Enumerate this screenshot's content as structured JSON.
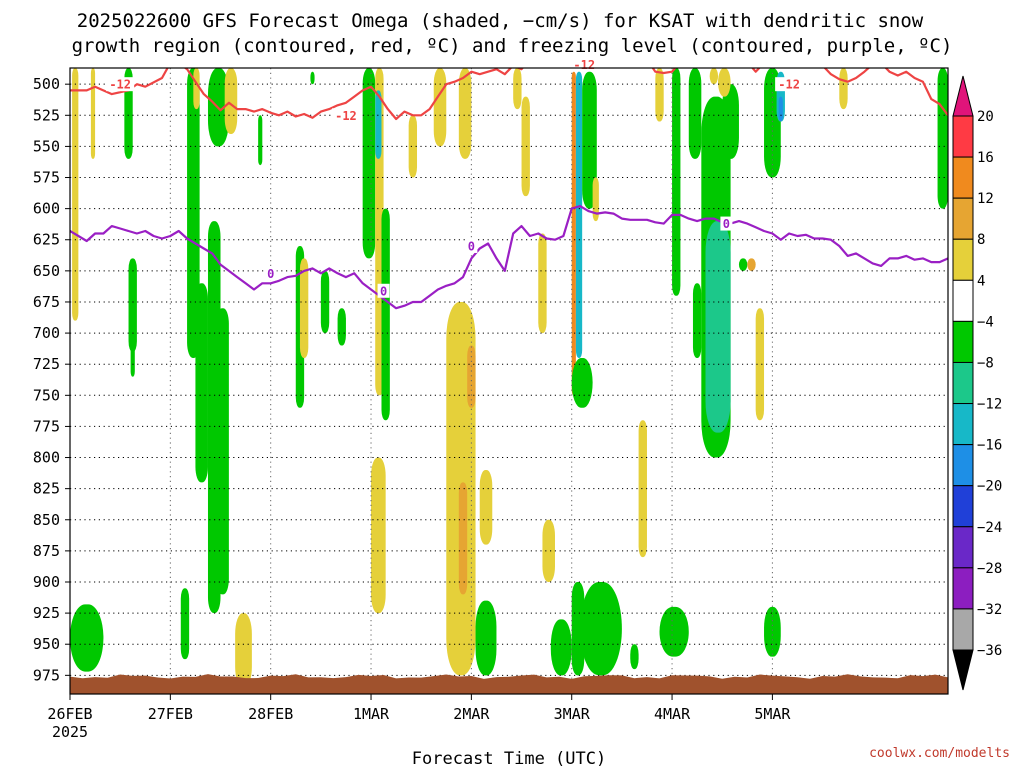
{
  "title": {
    "line1": "2025022600 GFS Forecast Omega (shaded, −cm/s) for KSAT with dendritic snow",
    "line2": "growth region (contoured, red, ºC) and freezing level (contoured, purple, ºC)"
  },
  "credit": "coolwx.com/modelts",
  "chart_data": {
    "type": "heatmap",
    "xlabel": "Forecast Time (UTC)",
    "ylabel": "",
    "xlim_hours": [
      0,
      210
    ],
    "ylim_hpa": [
      487,
      990
    ],
    "x_ticks": [
      {
        "hours": 0,
        "label": "26FEB",
        "sublabel": "2025"
      },
      {
        "hours": 24,
        "label": "27FEB"
      },
      {
        "hours": 48,
        "label": "28FEB"
      },
      {
        "hours": 72,
        "label": "1MAR"
      },
      {
        "hours": 96,
        "label": "2MAR"
      },
      {
        "hours": 120,
        "label": "3MAR"
      },
      {
        "hours": 144,
        "label": "4MAR"
      },
      {
        "hours": 168,
        "label": "5MAR"
      }
    ],
    "y_ticks": [
      500,
      525,
      550,
      575,
      600,
      625,
      650,
      675,
      700,
      725,
      750,
      775,
      800,
      825,
      850,
      875,
      900,
      925,
      950,
      975
    ],
    "grid": true,
    "colorbar": {
      "levels": [
        "20",
        "16",
        "12",
        "8",
        "4",
        "−4",
        "−8",
        "−12",
        "−16",
        "−20",
        "−24",
        "−28",
        "−32",
        "−36"
      ],
      "colors": [
        "#ff3a44",
        "#f08a1e",
        "#e6a532",
        "#e5d03a",
        "#ffffff",
        "#00c800",
        "#1cc88a",
        "#17b8c8",
        "#1e8fe6",
        "#2040d8",
        "#6a28c8",
        "#8c1ec0",
        "#a8a8a8"
      ],
      "top_arrow_color": "#e0147a",
      "bottom_arrow_color": "#000000"
    },
    "omega_color_classes": {
      "pos_4_8": "#e5d03a",
      "pos_8_12": "#e6a532",
      "pos_12_16": "#f08a1e",
      "neg_4_8": "#00c800",
      "neg_8_12": "#1cc88a",
      "neg_12_16": "#17b8c8",
      "neg_16_20": "#1e8fe6"
    },
    "omega_areas": [
      {
        "class": "neg_4_8",
        "t": [
          0,
          8
        ],
        "p": [
          918,
          972
        ]
      },
      {
        "class": "neg_4_8",
        "t": [
          13,
          15
        ],
        "p": [
          487,
          560
        ]
      },
      {
        "class": "neg_4_8",
        "t": [
          14,
          16
        ],
        "p": [
          640,
          715
        ]
      },
      {
        "class": "neg_4_8",
        "t": [
          14.5,
          15.5
        ],
        "p": [
          710,
          735
        ]
      },
      {
        "class": "pos_4_8",
        "t": [
          0.5,
          2
        ],
        "p": [
          487,
          690
        ]
      },
      {
        "class": "pos_4_8",
        "t": [
          5,
          6
        ],
        "p": [
          487,
          560
        ]
      },
      {
        "class": "neg_4_8",
        "t": [
          28,
          31
        ],
        "p": [
          487,
          720
        ]
      },
      {
        "class": "neg_4_8",
        "t": [
          33,
          38
        ],
        "p": [
          487,
          550
        ]
      },
      {
        "class": "pos_4_8",
        "t": [
          29.5,
          31
        ],
        "p": [
          487,
          520
        ]
      },
      {
        "class": "pos_4_8",
        "t": [
          37,
          40
        ],
        "p": [
          487,
          540
        ]
      },
      {
        "class": "neg_4_8",
        "t": [
          33,
          36
        ],
        "p": [
          610,
          925
        ]
      },
      {
        "class": "neg_4_8",
        "t": [
          35,
          38
        ],
        "p": [
          680,
          910
        ]
      },
      {
        "class": "neg_4_8",
        "t": [
          30,
          33
        ],
        "p": [
          660,
          820
        ]
      },
      {
        "class": "neg_4_8",
        "t": [
          26.5,
          28.5
        ],
        "p": [
          905,
          962
        ]
      },
      {
        "class": "pos_4_8",
        "t": [
          39.5,
          43.5
        ],
        "p": [
          925,
          985
        ]
      },
      {
        "class": "neg_4_8",
        "t": [
          45,
          46
        ],
        "p": [
          525,
          565
        ]
      },
      {
        "class": "neg_4_8",
        "t": [
          54,
          56
        ],
        "p": [
          630,
          760
        ]
      },
      {
        "class": "pos_4_8",
        "t": [
          55,
          57
        ],
        "p": [
          640,
          720
        ]
      },
      {
        "class": "neg_4_8",
        "t": [
          57.5,
          58.5
        ],
        "p": [
          490,
          500
        ]
      },
      {
        "class": "neg_4_8",
        "t": [
          60,
          62
        ],
        "p": [
          650,
          700
        ]
      },
      {
        "class": "neg_4_8",
        "t": [
          64,
          66
        ],
        "p": [
          680,
          710
        ]
      },
      {
        "class": "neg_4_8",
        "t": [
          70,
          73
        ],
        "p": [
          487,
          640
        ]
      },
      {
        "class": "pos_4_8",
        "t": [
          73,
          75
        ],
        "p": [
          487,
          750
        ]
      },
      {
        "class": "neg_12_16",
        "t": [
          73,
          74.5
        ],
        "p": [
          505,
          560
        ]
      },
      {
        "class": "neg_4_8",
        "t": [
          74.5,
          76.5
        ],
        "p": [
          600,
          770
        ]
      },
      {
        "class": "pos_4_8",
        "t": [
          72,
          75.5
        ],
        "p": [
          800,
          925
        ]
      },
      {
        "class": "pos_4_8",
        "t": [
          81,
          83
        ],
        "p": [
          525,
          575
        ]
      },
      {
        "class": "pos_4_8",
        "t": [
          87,
          90
        ],
        "p": [
          487,
          550
        ]
      },
      {
        "class": "pos_4_8",
        "t": [
          93,
          96
        ],
        "p": [
          487,
          560
        ]
      },
      {
        "class": "pos_4_8",
        "t": [
          90,
          97
        ],
        "p": [
          675,
          975
        ]
      },
      {
        "class": "pos_8_12",
        "t": [
          93,
          95
        ],
        "p": [
          820,
          910
        ]
      },
      {
        "class": "pos_8_12",
        "t": [
          95,
          97
        ],
        "p": [
          710,
          760
        ]
      },
      {
        "class": "neg_4_8",
        "t": [
          97,
          102
        ],
        "p": [
          915,
          975
        ]
      },
      {
        "class": "pos_4_8",
        "t": [
          98,
          101
        ],
        "p": [
          810,
          870
        ]
      },
      {
        "class": "pos_4_8",
        "t": [
          106,
          108
        ],
        "p": [
          487,
          520
        ]
      },
      {
        "class": "pos_4_8",
        "t": [
          108,
          110
        ],
        "p": [
          510,
          590
        ]
      },
      {
        "class": "pos_4_8",
        "t": [
          112,
          114
        ],
        "p": [
          620,
          700
        ]
      },
      {
        "class": "pos_4_8",
        "t": [
          113,
          116
        ],
        "p": [
          850,
          900
        ]
      },
      {
        "class": "pos_12_16",
        "t": [
          120,
          121
        ],
        "p": [
          490,
          750
        ]
      },
      {
        "class": "neg_4_8",
        "t": [
          115,
          120
        ],
        "p": [
          930,
          975
        ]
      },
      {
        "class": "neg_4_8",
        "t": [
          120,
          123
        ],
        "p": [
          900,
          975
        ]
      },
      {
        "class": "neg_12_16",
        "t": [
          121,
          122.5
        ],
        "p": [
          490,
          720
        ]
      },
      {
        "class": "neg_4_8",
        "t": [
          122.5,
          126
        ],
        "p": [
          490,
          600
        ]
      },
      {
        "class": "neg_4_8",
        "t": [
          120,
          125
        ],
        "p": [
          720,
          760
        ]
      },
      {
        "class": "neg_4_8",
        "t": [
          122,
          132
        ],
        "p": [
          900,
          975
        ]
      },
      {
        "class": "pos_4_8",
        "t": [
          125,
          126.5
        ],
        "p": [
          575,
          610
        ]
      },
      {
        "class": "neg_4_8",
        "t": [
          134,
          136
        ],
        "p": [
          950,
          970
        ]
      },
      {
        "class": "pos_4_8",
        "t": [
          136,
          138
        ],
        "p": [
          770,
          880
        ]
      },
      {
        "class": "pos_4_8",
        "t": [
          140,
          142
        ],
        "p": [
          487,
          530
        ]
      },
      {
        "class": "neg_4_8",
        "t": [
          141,
          148
        ],
        "p": [
          920,
          960
        ]
      },
      {
        "class": "neg_4_8",
        "t": [
          144,
          146
        ],
        "p": [
          487,
          670
        ]
      },
      {
        "class": "neg_4_8",
        "t": [
          148,
          151
        ],
        "p": [
          487,
          560
        ]
      },
      {
        "class": "pos_4_8",
        "t": [
          151,
          154
        ],
        "p": [
          600,
          690
        ]
      },
      {
        "class": "neg_4_8",
        "t": [
          149,
          151
        ],
        "p": [
          660,
          720
        ]
      },
      {
        "class": "neg_4_8",
        "t": [
          151,
          158
        ],
        "p": [
          510,
          800
        ]
      },
      {
        "class": "neg_12_16",
        "t": [
          153,
          156
        ],
        "p": [
          640,
          760
        ]
      },
      {
        "class": "neg_8_12",
        "t": [
          152,
          158
        ],
        "p": [
          610,
          780
        ]
      },
      {
        "class": "neg_4_8",
        "t": [
          156,
          160
        ],
        "p": [
          500,
          560
        ]
      },
      {
        "class": "pos_4_8",
        "t": [
          153,
          155
        ],
        "p": [
          487,
          500
        ]
      },
      {
        "class": "pos_4_8",
        "t": [
          155,
          158
        ],
        "p": [
          487,
          510
        ]
      },
      {
        "class": "pos_4_8",
        "t": [
          164,
          166
        ],
        "p": [
          680,
          770
        ]
      },
      {
        "class": "neg_4_8",
        "t": [
          166,
          170
        ],
        "p": [
          487,
          575
        ]
      },
      {
        "class": "neg_12_16",
        "t": [
          169,
          171
        ],
        "p": [
          490,
          530
        ]
      },
      {
        "class": "neg_16_20",
        "t": [
          169.5,
          170.5
        ],
        "p": [
          510,
          530
        ]
      },
      {
        "class": "neg_4_8",
        "t": [
          160,
          162
        ],
        "p": [
          640,
          650
        ]
      },
      {
        "class": "pos_8_12",
        "t": [
          162,
          164
        ],
        "p": [
          640,
          650
        ]
      },
      {
        "class": "neg_4_8",
        "t": [
          166,
          170
        ],
        "p": [
          920,
          960
        ]
      },
      {
        "class": "neg_4_8",
        "t": [
          207.5,
          210
        ],
        "p": [
          487,
          600
        ]
      },
      {
        "class": "pos_4_8",
        "t": [
          184,
          186
        ],
        "p": [
          487,
          520
        ]
      }
    ],
    "series": [
      {
        "name": "-12",
        "color": "#ee4444",
        "x": [
          0,
          4,
          6,
          10,
          14,
          16,
          18,
          22,
          24,
          26,
          28,
          30,
          32,
          34,
          36,
          38,
          40,
          42,
          44,
          46,
          48,
          50,
          52,
          54,
          56,
          58,
          60,
          62,
          64,
          66,
          68,
          70,
          72,
          74,
          76,
          78,
          80,
          82,
          84,
          86,
          88,
          90,
          92,
          94,
          96,
          98,
          100,
          102,
          104,
          106,
          108,
          110,
          112,
          114,
          116,
          118,
          120,
          122,
          124,
          126,
          128,
          130,
          132,
          134,
          136,
          138,
          140,
          142,
          144,
          146,
          148,
          150,
          152,
          154,
          156,
          158,
          160,
          162,
          164,
          166,
          168,
          170,
          172,
          174,
          176,
          178,
          180,
          182,
          184,
          186,
          188,
          190,
          192,
          194,
          196,
          198,
          200,
          202,
          204,
          206,
          208,
          210
        ],
        "y": [
          505,
          505,
          502,
          508,
          505,
          500,
          502,
          495,
          483,
          483,
          488,
          498,
          508,
          514,
          521,
          515,
          520,
          520,
          522,
          520,
          523,
          525,
          522,
          526,
          524,
          527,
          522,
          520,
          517,
          515,
          510,
          505,
          502,
          510,
          520,
          528,
          522,
          525,
          525,
          520,
          510,
          500,
          498,
          495,
          490,
          492,
          490,
          488,
          492,
          485,
          488,
          480,
          480,
          483,
          485,
          485,
          485,
          484,
          483,
          484,
          482,
          480,
          482,
          480,
          485,
          480,
          490,
          491,
          490,
          482,
          478,
          483,
          480,
          478,
          478,
          482,
          485,
          482,
          490,
          483,
          478,
          482,
          480,
          478,
          485,
          480,
          485,
          492,
          496,
          498,
          495,
          490,
          484,
          483,
          490,
          493,
          490,
          495,
          498,
          512,
          516,
          525
        ]
      },
      {
        "name": "0",
        "color": "#9a1fc4",
        "x": [
          0,
          2,
          4,
          6,
          8,
          10,
          12,
          14,
          16,
          18,
          20,
          22,
          24,
          26,
          28,
          30,
          32,
          34,
          36,
          38,
          40,
          42,
          44,
          46,
          48,
          50,
          52,
          54,
          56,
          58,
          60,
          62,
          64,
          66,
          68,
          70,
          72,
          74,
          76,
          78,
          80,
          82,
          84,
          86,
          88,
          90,
          92,
          94,
          96,
          98,
          100,
          102,
          104,
          106,
          108,
          110,
          112,
          114,
          116,
          118,
          120,
          122,
          124,
          126,
          128,
          130,
          132,
          134,
          136,
          138,
          140,
          142,
          144,
          146,
          148,
          150,
          152,
          154,
          156,
          158,
          160,
          162,
          164,
          166,
          168,
          170,
          172,
          174,
          176,
          178,
          180,
          182,
          184,
          186,
          188,
          190,
          192,
          194,
          196,
          198,
          200,
          202,
          204,
          206,
          208,
          210
        ],
        "y": [
          618,
          622,
          626,
          620,
          620,
          614,
          616,
          618,
          620,
          618,
          622,
          624,
          622,
          618,
          624,
          628,
          632,
          636,
          645,
          650,
          655,
          660,
          665,
          660,
          660,
          658,
          655,
          654,
          650,
          648,
          652,
          648,
          652,
          655,
          652,
          660,
          665,
          670,
          675,
          680,
          678,
          675,
          675,
          670,
          665,
          662,
          660,
          655,
          640,
          632,
          628,
          640,
          650,
          620,
          614,
          622,
          620,
          624,
          625,
          622,
          600,
          598,
          602,
          604,
          603,
          604,
          608,
          609,
          609,
          609,
          611,
          612,
          605,
          605,
          608,
          610,
          608,
          608,
          611,
          612,
          610,
          612,
          615,
          618,
          620,
          625,
          620,
          622,
          621,
          624,
          624,
          625,
          630,
          638,
          636,
          640,
          644,
          646,
          640,
          640,
          638,
          641,
          640,
          643,
          643,
          640
        ]
      }
    ],
    "contour_labels": [
      {
        "series": "-12",
        "text": "-12",
        "x": 12,
        "y": 500
      },
      {
        "series": "-12",
        "text": "-12",
        "x": 66,
        "y": 525
      },
      {
        "series": "-12",
        "text": "-12",
        "x": 123,
        "y": 484
      },
      {
        "series": "-12",
        "text": "-12",
        "x": 172,
        "y": 500
      },
      {
        "series": "0",
        "text": "0",
        "x": 48,
        "y": 652
      },
      {
        "series": "0",
        "text": "0",
        "x": 75,
        "y": 666
      },
      {
        "series": "0",
        "text": "0",
        "x": 96,
        "y": 630
      },
      {
        "series": "0",
        "text": "0",
        "x": 157,
        "y": 612
      }
    ],
    "ground_color": "#a0522d",
    "ground_top_hpa": 976
  }
}
